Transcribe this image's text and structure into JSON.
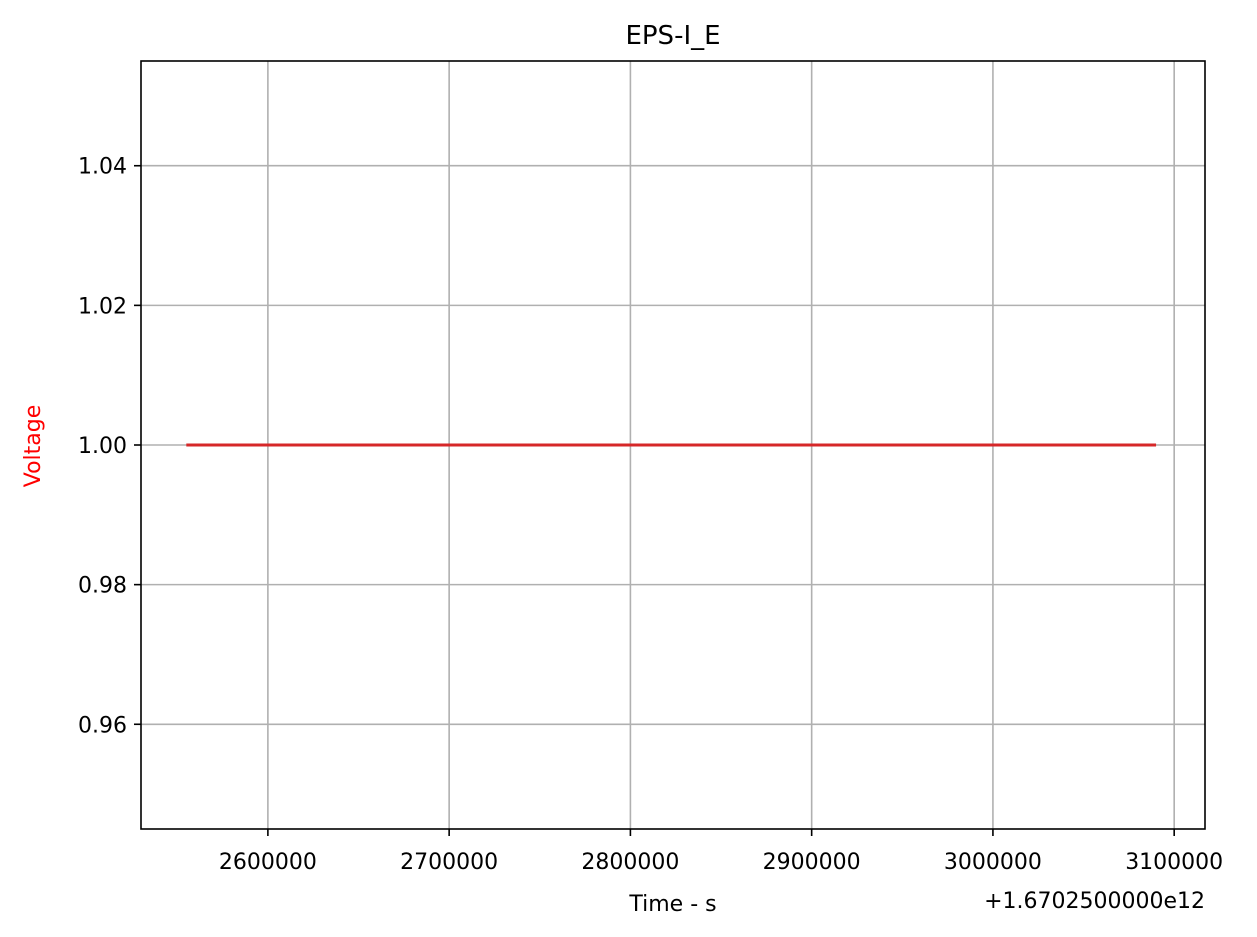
{
  "chart_data": {
    "type": "line",
    "title": "EPS-I_E",
    "xlabel": "Time - s",
    "ylabel": "Voltage",
    "ylabel_color": "#ff0000",
    "x_offset_text": "+1.6702500000e12",
    "xlim": [
      2530000,
      3117000
    ],
    "ylim": [
      0.945,
      1.055
    ],
    "xticks": [
      2600000,
      2700000,
      2800000,
      2900000,
      3000000,
      3100000
    ],
    "xtick_labels": [
      "2600000",
      "2700000",
      "2800000",
      "2900000",
      "3000000",
      "3100000"
    ],
    "yticks": [
      0.96,
      0.98,
      1.0,
      1.02,
      1.04
    ],
    "ytick_labels": [
      "0.96",
      "0.98",
      "1.00",
      "1.02",
      "1.04"
    ],
    "grid": true,
    "series": [
      {
        "color": "#d62728",
        "x": [
          2555000,
          3090000
        ],
        "y": [
          1.0,
          1.0
        ]
      }
    ]
  }
}
